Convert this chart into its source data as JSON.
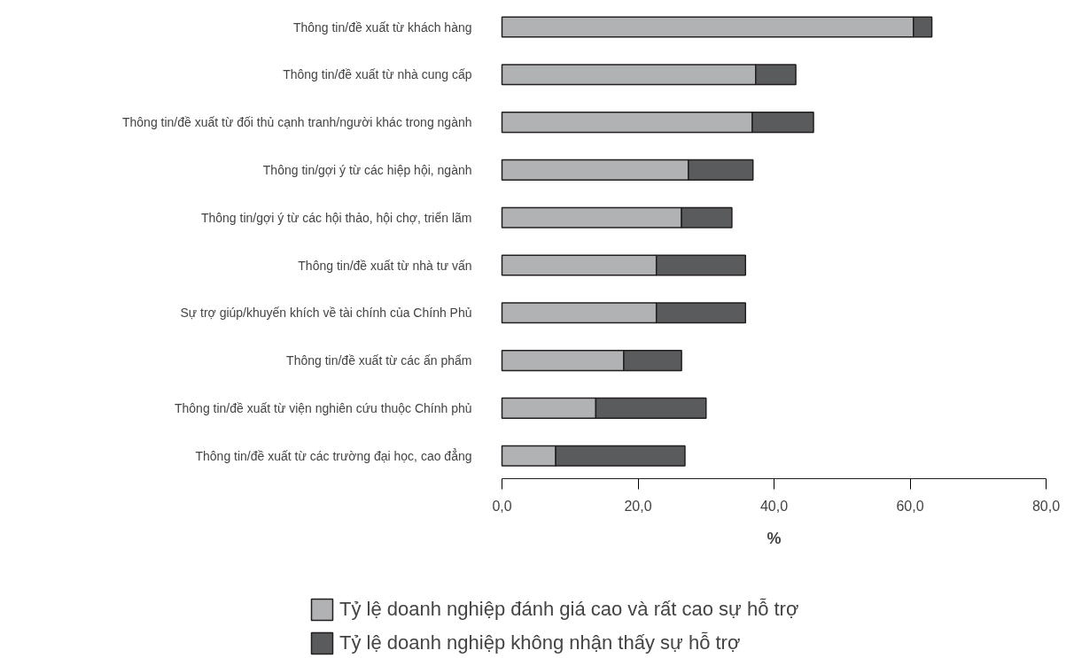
{
  "chart_data": {
    "type": "bar",
    "orientation": "horizontal",
    "stacked": true,
    "xlabel": "%",
    "categories": [
      "Thông tin/đề xuất từ khách hàng",
      "Thông tin/đề xuất từ nhà cung cấp",
      "Thông tin/đề xuất từ đối thủ cạnh tranh/người khác trong ngành",
      "Thông tin/gợi ý từ các hiệp hội, ngành",
      "Thông tin/gợi ý từ các hội thảo, hội chợ, triển lãm",
      "Thông tin/đề xuất từ nhà tư vấn",
      "Sự trợ giúp/khuyến khích về tài chính của Chính Phủ",
      "Thông tin/đề xuất từ các ấn phẩm",
      "Thông tin/đề xuất từ viện nghiên cứu thuộc Chính phủ",
      "Thông tin/đề xuất từ các trường đại học, cao đẳng"
    ],
    "series": [
      {
        "name": "Tỷ lệ doanh nghiệp đánh giá cao và rất cao sự hỗ trợ",
        "color": "#b1b2b4",
        "values": [
          60.5,
          37.3,
          36.8,
          27.4,
          26.4,
          22.7,
          22.7,
          17.9,
          13.8,
          7.9
        ]
      },
      {
        "name": "Tỷ lệ doanh nghiệp không nhận thấy sự hỗ trợ",
        "color": "#5a5b5d",
        "values": [
          2.7,
          5.9,
          9.0,
          9.5,
          7.4,
          13.1,
          13.1,
          8.5,
          16.2,
          19.0
        ]
      }
    ],
    "xlim": [
      0,
      80
    ],
    "xticks": [
      {
        "value": 0,
        "label": "0,0"
      },
      {
        "value": 20,
        "label": "20,0"
      },
      {
        "value": 40,
        "label": "40,0"
      },
      {
        "value": 60,
        "label": "60,0"
      },
      {
        "value": 80,
        "label": "80,0"
      }
    ],
    "grid": false,
    "legend": "bottom"
  }
}
